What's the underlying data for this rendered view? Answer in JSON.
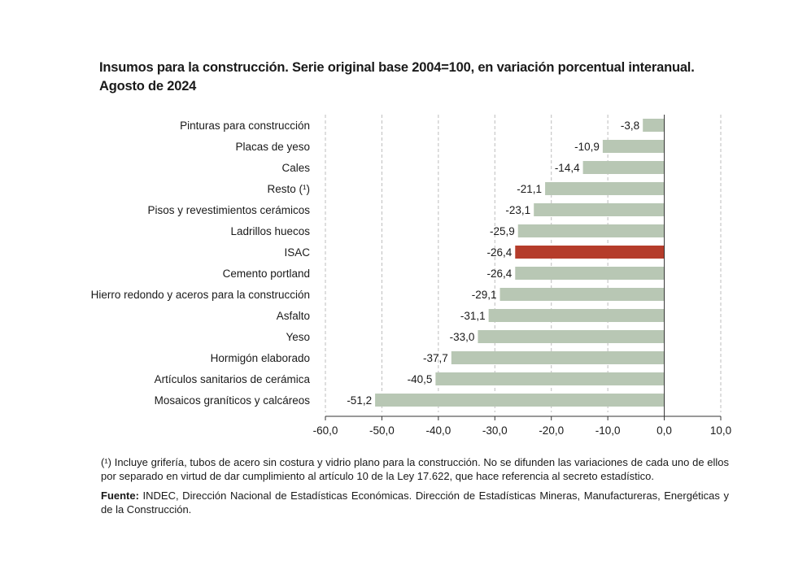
{
  "title_line1": "Insumos para la construcción. Serie original base 2004=100, en variación porcentual interanual.",
  "title_line2": "Agosto de 2024",
  "footnote": "(¹) Incluye grifería, tubos de acero sin costura y vidrio plano para la construcción. No se difunden las variaciones de cada uno de ellos por separado en virtud de dar cumplimiento al artículo 10 de la Ley 17.622, que hace referencia al secreto estadístico.",
  "source_label": "Fuente:",
  "source_text": " INDEC, Dirección Nacional de Estadísticas Económicas. Dirección de Estadísticas Mineras, Manufactureras, Energéticas y de la Construcción.",
  "chart_data": {
    "type": "bar",
    "orientation": "horizontal",
    "title": "Insumos para la construcción. Serie original base 2004=100, en variación porcentual interanual. Agosto de 2024",
    "categories": [
      "Pinturas para construcción",
      "Placas de yeso",
      "Cales",
      "Resto (¹)",
      "Pisos y revestimientos cerámicos",
      "Ladrillos huecos",
      "ISAC",
      "Cemento portland",
      "Hierro redondo y aceros para la construcción",
      "Asfalto",
      "Yeso",
      "Hormigón elaborado",
      "Artículos sanitarios de cerámica",
      "Mosaicos graníticos y calcáreos"
    ],
    "values": [
      -3.8,
      -10.9,
      -14.4,
      -21.1,
      -23.1,
      -25.9,
      -26.4,
      -26.4,
      -29.1,
      -31.1,
      -33.0,
      -37.7,
      -40.5,
      -51.2
    ],
    "data_labels": [
      "-3,8",
      "-10,9",
      "-14,4",
      "-21,1",
      "-23,1",
      "-25,9",
      "-26,4",
      "-26,4",
      "-29,1",
      "-31,1",
      "-33,0",
      "-37,7",
      "-40,5",
      "-51,2"
    ],
    "xlim": [
      -60,
      10
    ],
    "xticks": [
      -60,
      -50,
      -40,
      -30,
      -20,
      -10,
      0,
      10
    ],
    "xtick_labels": [
      "-60,0",
      "-50,0",
      "-40,0",
      "-30,0",
      "-20,0",
      "-10,0",
      "0,0",
      "10,0"
    ],
    "grid": "vertical dashed",
    "highlight_category": "ISAC",
    "colors": {
      "bar": "#b8c7b4",
      "highlight": "#b53c2b",
      "grid": "#bdbdbd",
      "axis": "#333333"
    }
  }
}
